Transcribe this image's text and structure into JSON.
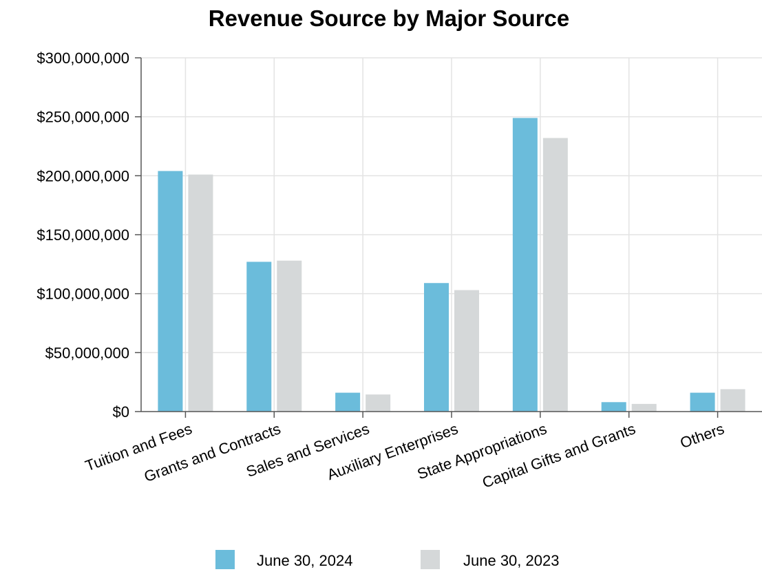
{
  "chart_data": {
    "type": "bar",
    "title": "Revenue Source by Major Source",
    "xlabel": "",
    "ylabel": "",
    "categories": [
      "Tuition and Fees",
      "Grants and Contracts",
      "Sales and Services",
      "Auxiliary Enterprises",
      "State Appropriations",
      "Capital Gifts and Grants",
      "Others"
    ],
    "series": [
      {
        "name": "June 30, 2024",
        "color": "#6bbcdb",
        "values": [
          204000000,
          127000000,
          16000000,
          109000000,
          249000000,
          8000000,
          16000000
        ]
      },
      {
        "name": "June 30, 2023",
        "color": "#d5d8d9",
        "values": [
          201000000,
          128000000,
          14500000,
          103000000,
          232000000,
          6500000,
          19000000
        ]
      }
    ],
    "ylim": [
      0,
      300000000
    ],
    "yticks": [
      0,
      50000000,
      100000000,
      150000000,
      200000000,
      250000000,
      300000000
    ],
    "ytick_labels": [
      "$0",
      "$50,000,000",
      "$100,000,000",
      "$150,000,000",
      "$200,000,000",
      "$250,000,000",
      "$300,000,000"
    ],
    "grid": true,
    "legend_position": "bottom"
  }
}
